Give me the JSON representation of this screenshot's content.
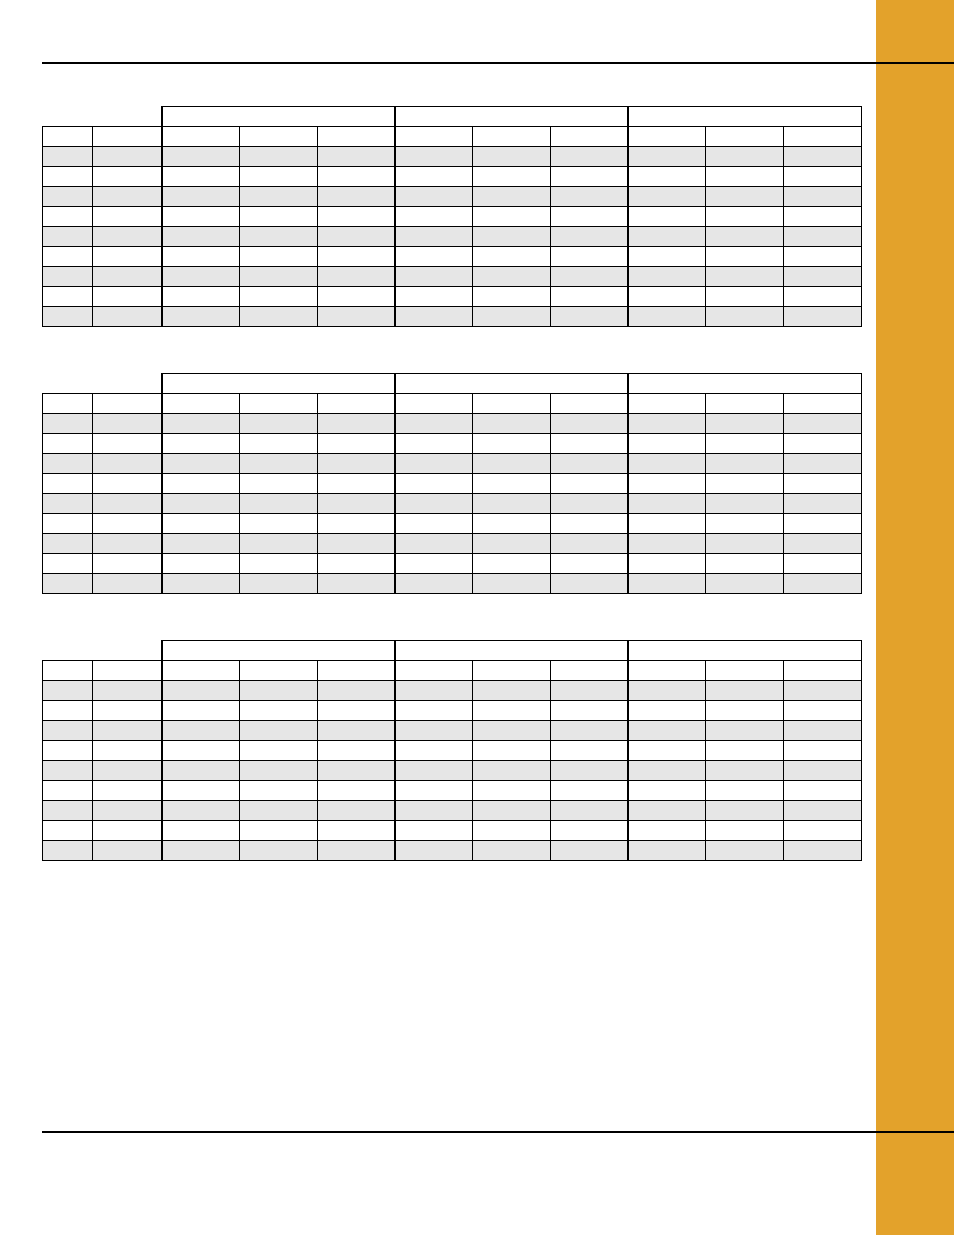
{
  "accent_color": "#e3a22b",
  "row_shade_color": "#e6e6e6",
  "rule_color": "#000000",
  "tables": [
    {
      "title": "",
      "group_header": [
        "",
        "",
        ""
      ],
      "sub_header_left": [
        "",
        ""
      ],
      "sub_header_data": [
        "",
        "",
        "",
        "",
        "",
        "",
        "",
        "",
        ""
      ],
      "rows": [
        [
          "",
          "",
          "",
          "",
          "",
          "",
          "",
          "",
          "",
          "",
          ""
        ],
        [
          "",
          "",
          "",
          "",
          "",
          "",
          "",
          "",
          "",
          "",
          ""
        ],
        [
          "",
          "",
          "",
          "",
          "",
          "",
          "",
          "",
          "",
          "",
          ""
        ],
        [
          "",
          "",
          "",
          "",
          "",
          "",
          "",
          "",
          "",
          "",
          ""
        ],
        [
          "",
          "",
          "",
          "",
          "",
          "",
          "",
          "",
          "",
          "",
          ""
        ],
        [
          "",
          "",
          "",
          "",
          "",
          "",
          "",
          "",
          "",
          "",
          ""
        ],
        [
          "",
          "",
          "",
          "",
          "",
          "",
          "",
          "",
          "",
          "",
          ""
        ],
        [
          "",
          "",
          "",
          "",
          "",
          "",
          "",
          "",
          "",
          "",
          ""
        ],
        [
          "",
          "",
          "",
          "",
          "",
          "",
          "",
          "",
          "",
          "",
          ""
        ]
      ]
    },
    {
      "title": "",
      "group_header": [
        "",
        "",
        ""
      ],
      "sub_header_left": [
        "",
        ""
      ],
      "sub_header_data": [
        "",
        "",
        "",
        "",
        "",
        "",
        "",
        "",
        ""
      ],
      "rows": [
        [
          "",
          "",
          "",
          "",
          "",
          "",
          "",
          "",
          "",
          "",
          ""
        ],
        [
          "",
          "",
          "",
          "",
          "",
          "",
          "",
          "",
          "",
          "",
          ""
        ],
        [
          "",
          "",
          "",
          "",
          "",
          "",
          "",
          "",
          "",
          "",
          ""
        ],
        [
          "",
          "",
          "",
          "",
          "",
          "",
          "",
          "",
          "",
          "",
          ""
        ],
        [
          "",
          "",
          "",
          "",
          "",
          "",
          "",
          "",
          "",
          "",
          ""
        ],
        [
          "",
          "",
          "",
          "",
          "",
          "",
          "",
          "",
          "",
          "",
          ""
        ],
        [
          "",
          "",
          "",
          "",
          "",
          "",
          "",
          "",
          "",
          "",
          ""
        ],
        [
          "",
          "",
          "",
          "",
          "",
          "",
          "",
          "",
          "",
          "",
          ""
        ],
        [
          "",
          "",
          "",
          "",
          "",
          "",
          "",
          "",
          "",
          "",
          ""
        ]
      ]
    },
    {
      "title": "",
      "group_header": [
        "",
        "",
        ""
      ],
      "sub_header_left": [
        "",
        ""
      ],
      "sub_header_data": [
        "",
        "",
        "",
        "",
        "",
        "",
        "",
        "",
        ""
      ],
      "rows": [
        [
          "",
          "",
          "",
          "",
          "",
          "",
          "",
          "",
          "",
          "",
          ""
        ],
        [
          "",
          "",
          "",
          "",
          "",
          "",
          "",
          "",
          "",
          "",
          ""
        ],
        [
          "",
          "",
          "",
          "",
          "",
          "",
          "",
          "",
          "",
          "",
          ""
        ],
        [
          "",
          "",
          "",
          "",
          "",
          "",
          "",
          "",
          "",
          "",
          ""
        ],
        [
          "",
          "",
          "",
          "",
          "",
          "",
          "",
          "",
          "",
          "",
          ""
        ],
        [
          "",
          "",
          "",
          "",
          "",
          "",
          "",
          "",
          "",
          "",
          ""
        ],
        [
          "",
          "",
          "",
          "",
          "",
          "",
          "",
          "",
          "",
          "",
          ""
        ],
        [
          "",
          "",
          "",
          "",
          "",
          "",
          "",
          "",
          "",
          "",
          ""
        ],
        [
          "",
          "",
          "",
          "",
          "",
          "",
          "",
          "",
          "",
          "",
          ""
        ]
      ]
    }
  ]
}
